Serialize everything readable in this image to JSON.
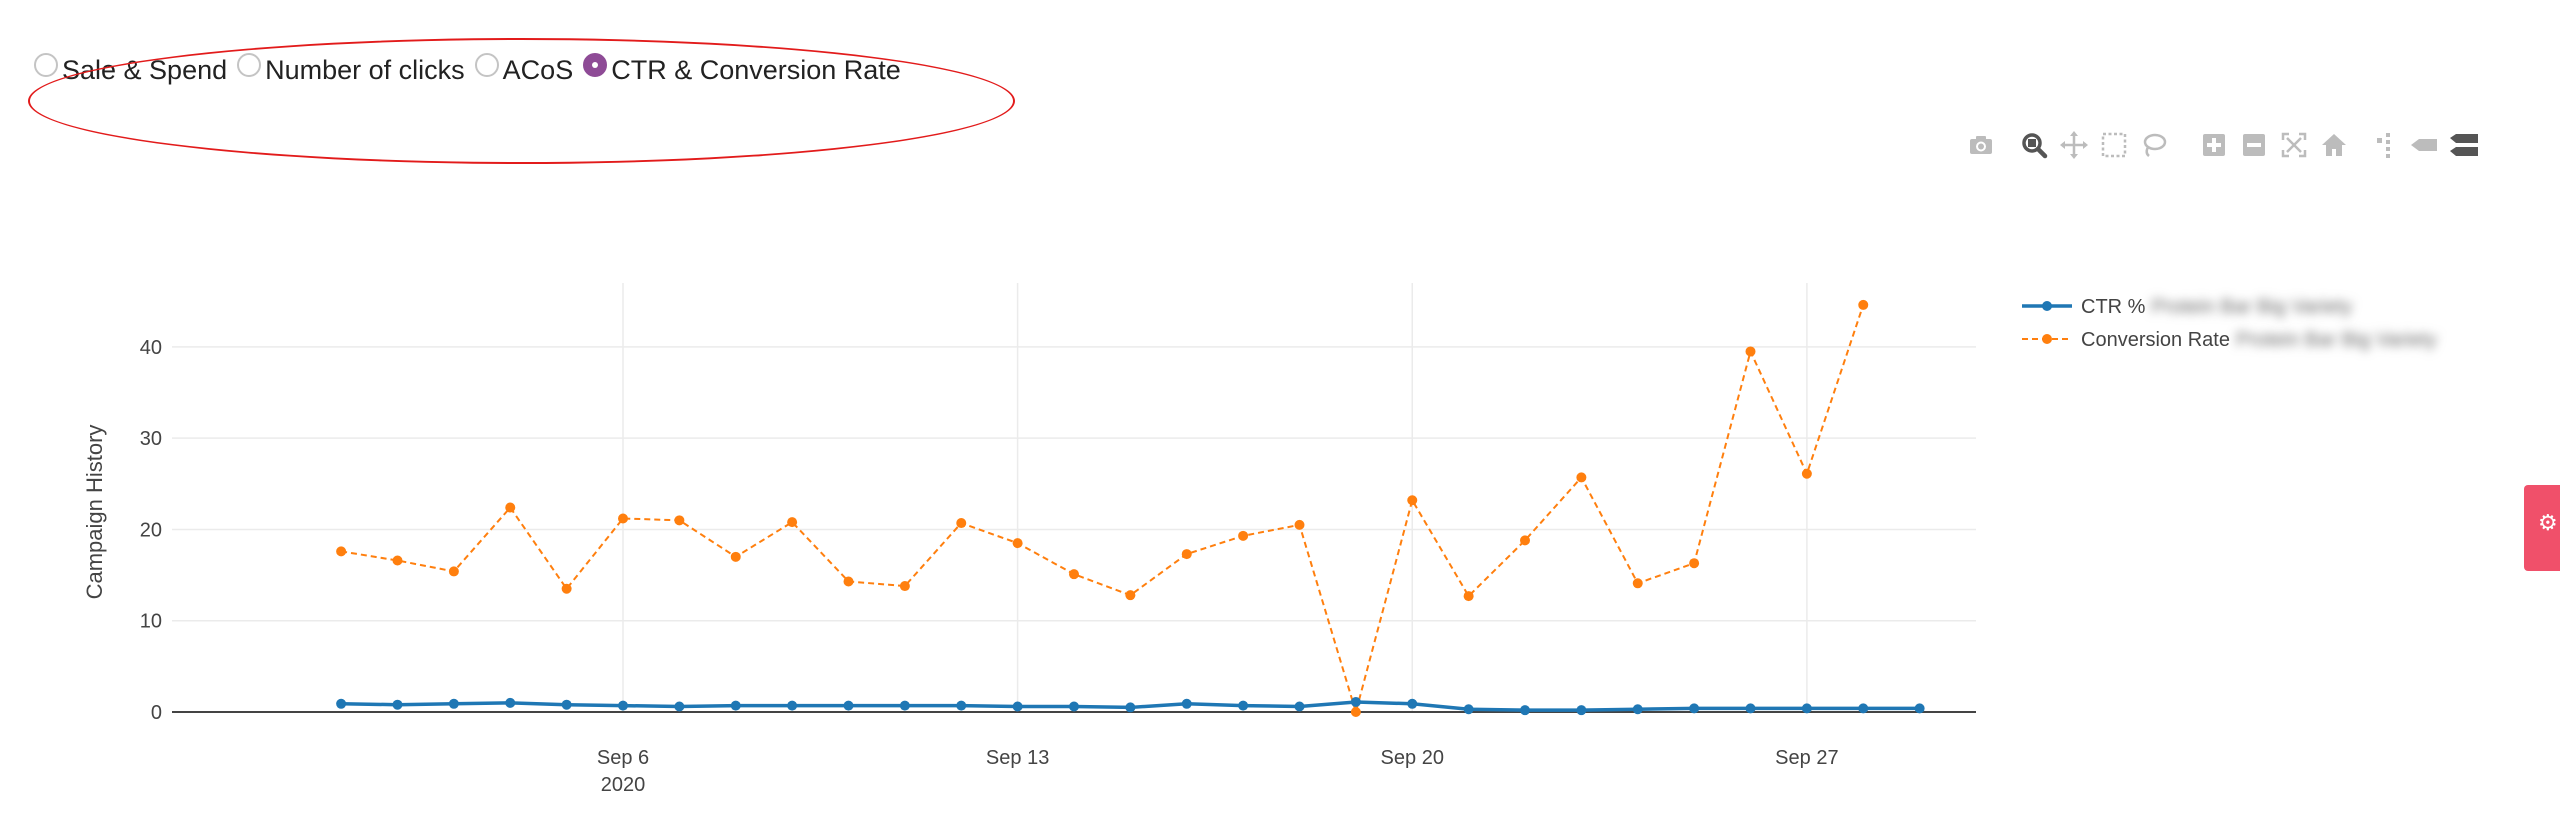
{
  "radio_group": {
    "options": [
      {
        "label": "Sale & Spend",
        "checked": false
      },
      {
        "label": "Number of clicks",
        "checked": false
      },
      {
        "label": "ACoS",
        "checked": false
      },
      {
        "label": "CTR & Conversion Rate",
        "checked": true
      }
    ]
  },
  "modebar": {
    "icons": [
      "camera-icon",
      "zoom-icon",
      "pan-icon",
      "box-select-icon",
      "lasso-select-icon",
      "zoom-in-icon",
      "zoom-out-icon",
      "autoscale-icon",
      "reset-axes-icon",
      "spike-lines-icon",
      "hover-closest-icon",
      "hover-compare-icon"
    ]
  },
  "side_tab": {
    "icon": "gear-icon"
  },
  "colors": {
    "ctr": "#1f77b4",
    "conversion": "#ff7f0e",
    "radio_checked": "#8e4b96",
    "highlight": "#e21b1b",
    "side_tab": "#f0506a"
  },
  "chart_data": {
    "type": "line",
    "ylabel": "Campaign History",
    "ylim": [
      0,
      47
    ],
    "yticks": [
      0,
      10,
      20,
      30,
      40
    ],
    "xrange": [
      "2020-08-29",
      "2020-09-30"
    ],
    "xticks": [
      {
        "date": "2020-09-06",
        "label": "Sep 6",
        "sublabel": "2020"
      },
      {
        "date": "2020-09-13",
        "label": "Sep 13",
        "sublabel": ""
      },
      {
        "date": "2020-09-20",
        "label": "Sep 20",
        "sublabel": ""
      },
      {
        "date": "2020-09-27",
        "label": "Sep 27",
        "sublabel": ""
      }
    ],
    "grid": true,
    "legend": "top-right",
    "x": [
      "2020-09-01",
      "2020-09-02",
      "2020-09-03",
      "2020-09-04",
      "2020-09-05",
      "2020-09-06",
      "2020-09-07",
      "2020-09-08",
      "2020-09-09",
      "2020-09-10",
      "2020-09-11",
      "2020-09-12",
      "2020-09-13",
      "2020-09-14",
      "2020-09-15",
      "2020-09-16",
      "2020-09-17",
      "2020-09-18",
      "2020-09-19",
      "2020-09-20",
      "2020-09-21",
      "2020-09-22",
      "2020-09-23",
      "2020-09-24",
      "2020-09-25",
      "2020-09-26",
      "2020-09-27",
      "2020-09-28",
      "2020-09-29"
    ],
    "series": [
      {
        "name": "CTR %",
        "name_suffix_blurred": "Protein Bar Big Variety",
        "style": "solid",
        "values": [
          0.9,
          0.8,
          0.9,
          1.0,
          0.8,
          0.7,
          0.6,
          0.7,
          0.7,
          0.7,
          0.7,
          0.7,
          0.6,
          0.6,
          0.5,
          0.9,
          0.7,
          0.6,
          1.1,
          0.9,
          0.3,
          0.2,
          0.2,
          0.3,
          0.4,
          0.4,
          0.4,
          0.4,
          0.4
        ]
      },
      {
        "name": "Conversion Rate",
        "name_suffix_blurred": "Protein Bar Big Variety",
        "style": "dashed",
        "values": [
          17.6,
          16.6,
          15.4,
          22.4,
          13.5,
          21.2,
          21.0,
          17.0,
          20.8,
          14.3,
          13.8,
          20.7,
          18.5,
          15.1,
          12.8,
          17.3,
          19.3,
          20.5,
          0.0,
          23.2,
          12.7,
          18.8,
          25.7,
          14.1,
          16.3,
          39.5,
          26.1,
          44.6,
          null
        ]
      }
    ]
  }
}
